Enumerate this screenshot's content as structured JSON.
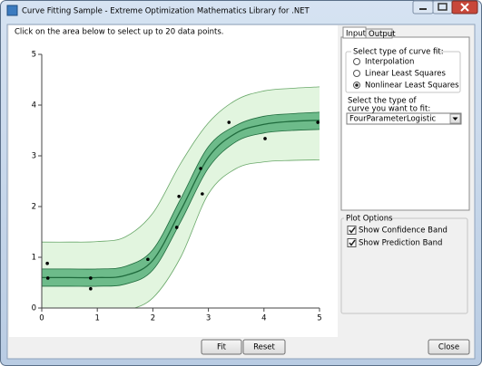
{
  "window": {
    "title": "Curve Fitting Sample - Extreme Optimization Mathematics Library for .NET"
  },
  "instruction": "Click on the area below to select up to 20 data points.",
  "tabs": [
    "Input",
    "Output"
  ],
  "curve_fit_group": {
    "label": "Select type of curve fit:",
    "options": [
      "Interpolation",
      "Linear Least Squares",
      "Nonlinear Least Squares"
    ],
    "selected": 2
  },
  "curve_type": {
    "label_lines": [
      "Select the type of",
      "curve you want to fit:"
    ],
    "value": "FourParameterLogistic"
  },
  "plot_options": {
    "label": "Plot Options",
    "options": [
      "Show Confidence Band",
      "Show Prediction Band"
    ],
    "checked": [
      true,
      true
    ]
  },
  "buttons": {
    "fit": "Fit",
    "reset": "Reset",
    "close": "Close"
  },
  "chart_data": {
    "type": "scatter",
    "x": [
      0.1,
      0.11,
      0.88,
      0.88,
      1.91,
      2.43,
      2.47,
      2.86,
      2.89,
      3.37,
      4.02,
      4.97
    ],
    "values": [
      0.88,
      0.59,
      0.59,
      0.38,
      0.96,
      1.59,
      2.2,
      2.75,
      2.25,
      3.66,
      3.34,
      3.66
    ],
    "color": "#000000",
    "fit": {
      "x": [
        0,
        0.5,
        1,
        1.5,
        2,
        2.5,
        3,
        3.5,
        4,
        4.5,
        5
      ],
      "values": [
        0.6,
        0.6,
        0.6,
        0.64,
        0.94,
        1.92,
        2.97,
        3.45,
        3.62,
        3.68,
        3.7
      ],
      "color": "#1f6b3d"
    },
    "confidence_band": {
      "lower": [
        0.43,
        0.43,
        0.43,
        0.47,
        0.75,
        1.7,
        2.76,
        3.28,
        3.45,
        3.5,
        3.52
      ],
      "upper": [
        0.77,
        0.77,
        0.77,
        0.82,
        1.15,
        2.15,
        3.18,
        3.6,
        3.78,
        3.83,
        3.86
      ],
      "color": "#6dbb8a"
    },
    "prediction_band": {
      "lower": [
        -0.1,
        -0.1,
        -0.1,
        -0.05,
        0.2,
        1.0,
        2.25,
        2.75,
        2.88,
        2.91,
        2.92
      ],
      "upper": [
        1.3,
        1.3,
        1.31,
        1.4,
        1.87,
        2.85,
        3.65,
        4.1,
        4.28,
        4.33,
        4.36
      ],
      "color": "#e2f5df",
      "edge_color": "#6aa86a"
    },
    "xlim": [
      0,
      5
    ],
    "ylim": [
      0,
      5
    ],
    "xticks": [
      0,
      1,
      2,
      3,
      4,
      5
    ],
    "yticks": [
      0,
      1,
      2,
      3,
      4,
      5
    ]
  }
}
